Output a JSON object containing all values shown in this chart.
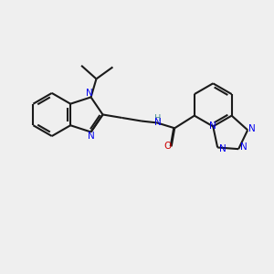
{
  "bg_color": "#efefef",
  "bond_color": "#1a1a1a",
  "N_color": "#0000ee",
  "O_color": "#cc0000",
  "H_color": "#4a9090",
  "lw": 1.5,
  "dbo": 0.025,
  "figsize": [
    3.0,
    3.0
  ],
  "dpi": 100,
  "xlim": [
    0.5,
    9.5
  ],
  "ylim": [
    1.0,
    9.0
  ]
}
